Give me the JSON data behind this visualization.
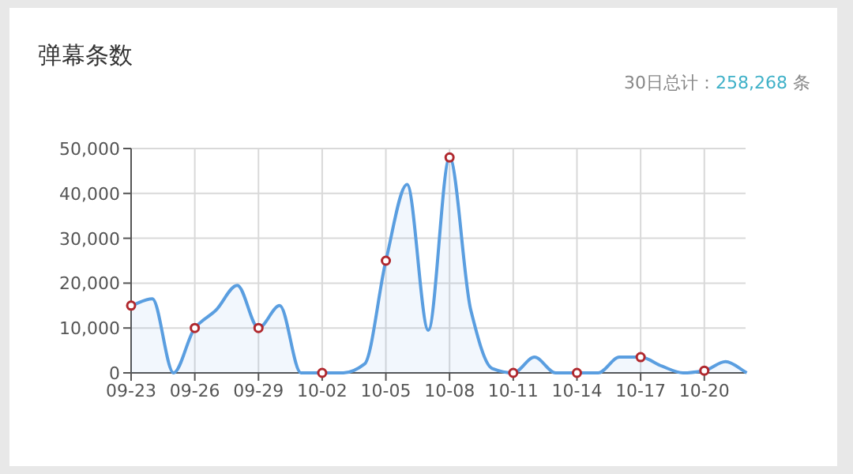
{
  "chart_data": {
    "type": "area",
    "title": "弹幕条数",
    "annotations": [
      "30日总计：258,268 条"
    ],
    "categories": [
      "09-23",
      null,
      null,
      "09-26",
      null,
      null,
      "09-29",
      null,
      null,
      "10-02",
      null,
      null,
      "10-05",
      null,
      null,
      "10-08",
      null,
      null,
      "10-11",
      null,
      null,
      "10-14",
      null,
      null,
      "10-17",
      null,
      null,
      "10-20",
      null,
      null
    ],
    "series": [
      {
        "color": "#5a9ee0",
        "values": [
          15000,
          16500,
          0,
          10000,
          14000,
          19500,
          10000,
          15000,
          0,
          0,
          0,
          2000,
          25000,
          42000,
          9500,
          48000,
          14000,
          1000,
          0,
          3500,
          0,
          0,
          0,
          3500,
          3500,
          1500,
          0,
          500,
          2500,
          0
        ]
      },
      {
        "type": "scatter",
        "color": "#b0282e",
        "x": [
          "09-23",
          "09-26",
          "09-29",
          "10-02",
          "10-05",
          "10-08",
          "10-11",
          "10-14",
          "10-17",
          "10-20"
        ],
        "values": [
          15000,
          10000,
          10000,
          0,
          25000,
          48000,
          0,
          0,
          3500,
          500
        ]
      }
    ],
    "ylim": [
      0,
      50000
    ],
    "yticks": [
      {
        "value": 0,
        "label": "0"
      },
      {
        "value": 10000,
        "label": "10,000"
      },
      {
        "value": 20000,
        "label": "20,000"
      },
      {
        "value": 30000,
        "label": "30,000"
      },
      {
        "value": 40000,
        "label": "40,000"
      },
      {
        "value": 50000,
        "label": "50,000"
      }
    ],
    "grid": true
  }
}
